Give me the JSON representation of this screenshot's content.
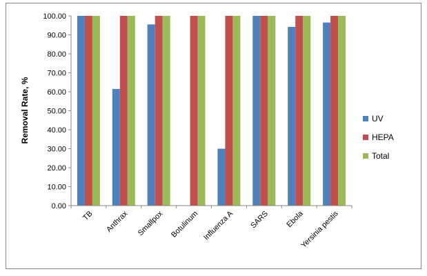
{
  "chart_data": {
    "type": "bar",
    "title": "",
    "xlabel": "",
    "ylabel": "Removal Rate, %",
    "ylim": [
      0,
      100
    ],
    "yticks": [
      "0.00",
      "10.00",
      "20.00",
      "30.00",
      "40.00",
      "50.00",
      "60.00",
      "70.00",
      "80.00",
      "90.00",
      "100.00"
    ],
    "grid": false,
    "legend_position": "right",
    "categories": [
      "TB",
      "Anthrax",
      "Smallpox",
      "Botulinum",
      "Influenza A",
      "SARS",
      "Ebola",
      "Yersinia pestis"
    ],
    "series": [
      {
        "name": "UV",
        "color": "#4F81BD",
        "values": [
          100,
          61.5,
          95.5,
          0,
          30,
          100,
          94.2,
          96.5
        ]
      },
      {
        "name": "HEPA",
        "color": "#C0504D",
        "values": [
          100,
          100,
          100,
          100,
          100,
          100,
          100,
          100
        ]
      },
      {
        "name": "Total",
        "color": "#9BBB59",
        "values": [
          100,
          100,
          100,
          100,
          100,
          100,
          100,
          100
        ]
      }
    ]
  }
}
